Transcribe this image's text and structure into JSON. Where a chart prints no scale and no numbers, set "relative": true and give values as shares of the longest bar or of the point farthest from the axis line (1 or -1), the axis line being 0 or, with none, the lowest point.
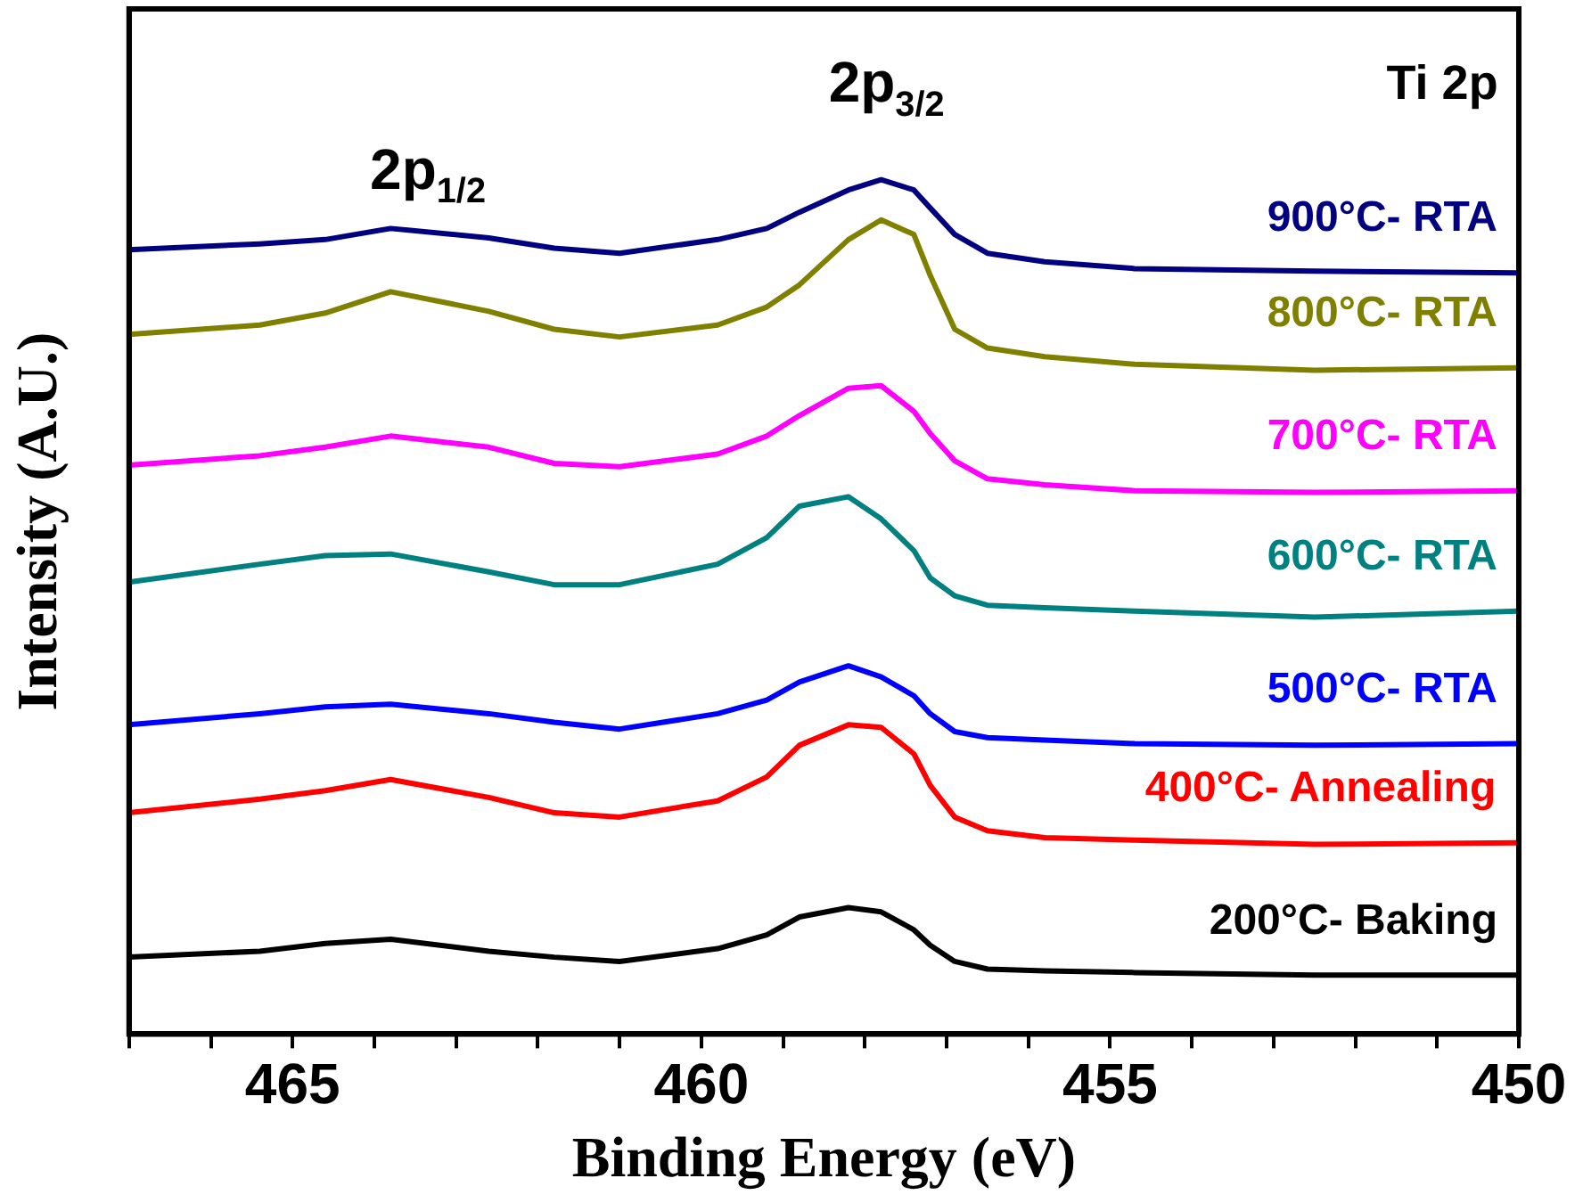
{
  "chart_data": {
    "type": "line",
    "relative": true,
    "xlabel": "Binding Energy (eV)",
    "ylabel": "Intensity (A.U.)",
    "xlim": [
      467,
      450
    ],
    "xticks": [
      {
        "value": 467,
        "label": null
      },
      {
        "value": 466,
        "label": null
      },
      465,
      {
        "value": 464,
        "label": null
      },
      {
        "value": 463,
        "label": null
      },
      {
        "value": 462,
        "label": null
      },
      {
        "value": 461,
        "label": null
      },
      460,
      {
        "value": 459,
        "label": null
      },
      {
        "value": 458,
        "label": null
      },
      {
        "value": 457,
        "label": null
      },
      {
        "value": 456,
        "label": null
      },
      455,
      {
        "value": 454,
        "label": null
      },
      {
        "value": 453,
        "label": null
      },
      {
        "value": 452,
        "label": null
      },
      {
        "value": 451,
        "label": null
      },
      450
    ],
    "x": [
      467.0,
      465.4,
      464.6,
      463.8,
      462.6,
      461.8,
      461.0,
      459.8,
      459.2,
      458.8,
      458.2,
      457.8,
      457.4,
      457.2,
      456.9,
      456.5,
      455.8,
      454.7,
      452.5,
      450.0
    ],
    "grid": false,
    "legend": false,
    "marker": "none",
    "line_style": "solid",
    "annotations": [
      "2p$_{1/2}$",
      "2p$_{3/2}$",
      "Ti 2p"
    ],
    "series": [
      {
        "name": "900°C- RTA",
        "color": "#000080",
        "values": [
          0.918,
          0.925,
          0.93,
          0.943,
          0.932,
          0.92,
          0.914,
          0.93,
          0.943,
          0.962,
          0.988,
          1,
          0.988,
          0.967,
          0.936,
          0.914,
          0.904,
          0.896,
          0.893,
          0.891
        ]
      },
      {
        "name": "800°C- RTA",
        "color": "#808000",
        "values": [
          0.819,
          0.83,
          0.844,
          0.869,
          0.846,
          0.825,
          0.816,
          0.83,
          0.851,
          0.877,
          0.93,
          0.953,
          0.936,
          0.888,
          0.825,
          0.803,
          0.793,
          0.784,
          0.777,
          0.78
        ]
      },
      {
        "name": "700°C- RTA",
        "color": "#ff00ff",
        "values": [
          0.666,
          0.677,
          0.687,
          0.7,
          0.687,
          0.668,
          0.664,
          0.679,
          0.7,
          0.724,
          0.756,
          0.759,
          0.729,
          0.703,
          0.671,
          0.65,
          0.643,
          0.636,
          0.634,
          0.636
        ]
      },
      {
        "name": "600°C- RTA",
        "color": "#008080",
        "values": [
          0.529,
          0.55,
          0.56,
          0.562,
          0.541,
          0.526,
          0.526,
          0.55,
          0.581,
          0.618,
          0.629,
          0.603,
          0.566,
          0.534,
          0.513,
          0.502,
          0.499,
          0.495,
          0.488,
          0.495
        ]
      },
      {
        "name": "500°C- RTA",
        "color": "#0000ff",
        "values": [
          0.362,
          0.375,
          0.383,
          0.386,
          0.375,
          0.365,
          0.357,
          0.375,
          0.391,
          0.412,
          0.431,
          0.418,
          0.396,
          0.375,
          0.354,
          0.347,
          0.344,
          0.34,
          0.338,
          0.34
        ]
      },
      {
        "name": "400°C- Annealing",
        "color": "#ff0000",
        "values": [
          0.259,
          0.275,
          0.285,
          0.298,
          0.277,
          0.259,
          0.254,
          0.273,
          0.301,
          0.338,
          0.362,
          0.359,
          0.328,
          0.291,
          0.254,
          0.238,
          0.23,
          0.227,
          0.222,
          0.224
        ]
      },
      {
        "name": "200°C- Baking",
        "color": "#000000",
        "values": [
          0.09,
          0.097,
          0.106,
          0.111,
          0.097,
          0.09,
          0.085,
          0.1,
          0.116,
          0.137,
          0.148,
          0.143,
          0.122,
          0.104,
          0.085,
          0.076,
          0.074,
          0.072,
          0.069,
          0.069
        ]
      }
    ]
  }
}
